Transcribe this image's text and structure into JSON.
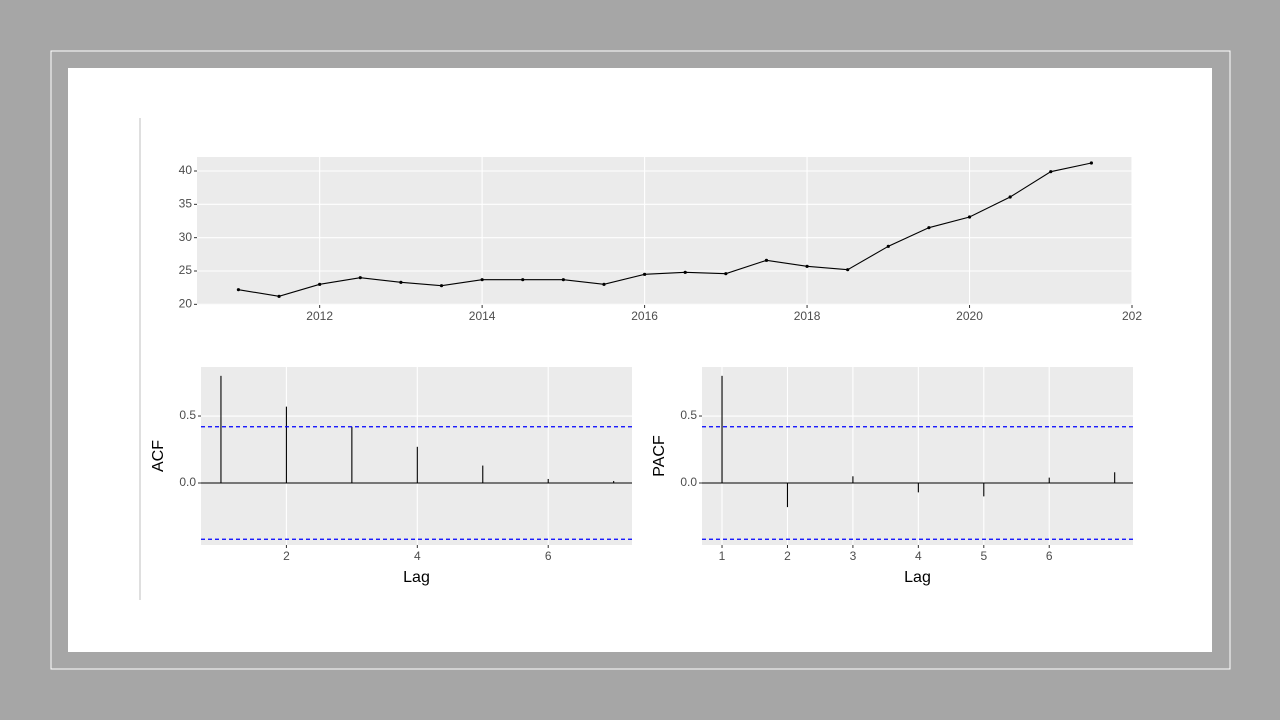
{
  "chart_data": [
    {
      "type": "line",
      "color": "#000000",
      "x": [
        2011,
        2011.5,
        2012,
        2012.5,
        2013,
        2013.5,
        2014,
        2014.5,
        2015,
        2015.5,
        2016,
        2016.5,
        2017,
        2017.5,
        2018,
        2018.5,
        2019,
        2019.5,
        2020,
        2020.5,
        2021,
        2021.5
      ],
      "values": [
        22.2,
        21.2,
        23.0,
        24.0,
        23.3,
        22.8,
        23.7,
        23.7,
        23.7,
        23.0,
        24.5,
        24.8,
        24.6,
        26.6,
        25.7,
        25.2,
        28.7,
        31.5,
        33.1,
        36.1,
        39.9,
        41.2
      ],
      "xlim": [
        2010.49,
        2022
      ],
      "xticks": [
        2012,
        2014,
        2016,
        2018,
        2020,
        {
          "value": 2022,
          "label": "202"
        }
      ],
      "ylim": [
        19.9,
        42.1
      ],
      "yticks": [
        20,
        25,
        30,
        35,
        40
      ],
      "grid": true
    },
    {
      "type": "stem",
      "color": "#000000",
      "x_label": "Lag",
      "y_label": "ACF",
      "x": [
        1,
        2,
        3,
        4,
        5,
        6,
        7
      ],
      "values": [
        0.8,
        0.57,
        0.42,
        0.27,
        0.13,
        0.03,
        0.015
      ],
      "ci_bounds": [
        -0.42,
        0.42
      ],
      "ci_color": "#0000ff",
      "xlim": [
        0.695,
        7.28
      ],
      "xticks": [
        2,
        4,
        6
      ],
      "ylim": [
        -0.463,
        0.866
      ],
      "yticks": [
        {
          "value": 0,
          "label": "0.0"
        },
        0.5
      ],
      "grid": true
    },
    {
      "type": "stem",
      "color": "#000000",
      "x_label": "Lag",
      "y_label": "PACF",
      "x": [
        1,
        2,
        3,
        4,
        5,
        6,
        7
      ],
      "values": [
        0.8,
        -0.18,
        0.05,
        -0.07,
        -0.1,
        0.04,
        0.08
      ],
      "ci_bounds": [
        -0.42,
        0.42
      ],
      "ci_color": "#0000ff",
      "xlim": [
        0.694,
        7.28
      ],
      "xticks": [
        1,
        2,
        3,
        4,
        5,
        6
      ],
      "ylim": [
        -0.463,
        0.866
      ],
      "yticks": [
        {
          "value": 0,
          "label": "0.0"
        },
        0.5
      ],
      "grid": true
    }
  ]
}
